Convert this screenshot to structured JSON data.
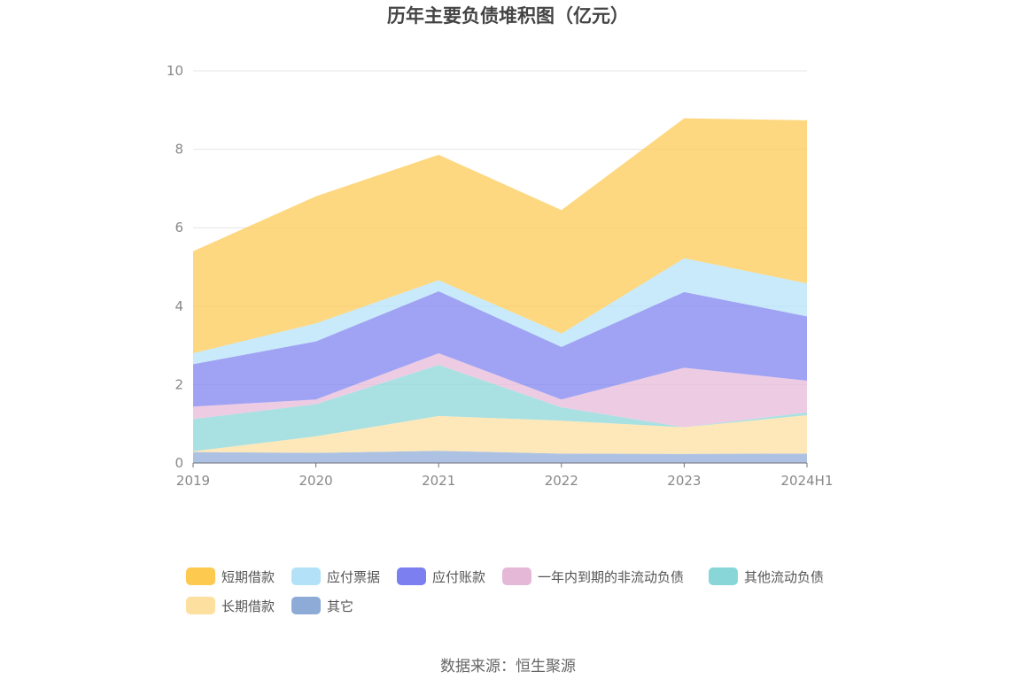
{
  "chart_data": {
    "type": "area",
    "stacked": true,
    "title": "历年主要负债堆积图（亿元）",
    "categories": [
      "2019",
      "2020",
      "2021",
      "2022",
      "2023",
      "2024H1"
    ],
    "ylim": [
      0,
      10
    ],
    "yticks": [
      0,
      2,
      4,
      6,
      8,
      10
    ],
    "grid": true,
    "legend_position": "bottom",
    "series": [
      {
        "name": "其它",
        "color": "#8eabd8",
        "values": [
          0.28,
          0.26,
          0.31,
          0.24,
          0.23,
          0.24
        ]
      },
      {
        "name": "长期借款",
        "color": "#fddf9f",
        "values": [
          0.02,
          0.42,
          0.89,
          0.84,
          0.68,
          0.98
        ]
      },
      {
        "name": "其他流动负债",
        "color": "#88d6d8",
        "values": [
          0.82,
          0.82,
          1.3,
          0.34,
          0.0,
          0.07
        ]
      },
      {
        "name": "一年内到期的非流动负债",
        "color": "#e6b8d8",
        "values": [
          0.32,
          0.12,
          0.3,
          0.2,
          1.52,
          0.81
        ]
      },
      {
        "name": "应付账款",
        "color": "#7b7ff0",
        "values": [
          1.08,
          1.48,
          1.58,
          1.34,
          1.93,
          1.64
        ]
      },
      {
        "name": "应付票据",
        "color": "#b3e2f8",
        "values": [
          0.28,
          0.46,
          0.28,
          0.34,
          0.86,
          0.84
        ]
      },
      {
        "name": "短期借款",
        "color": "#fdc94f",
        "values": [
          2.6,
          3.24,
          3.2,
          3.15,
          3.57,
          4.16
        ]
      }
    ]
  },
  "legend": [
    {
      "label": "短期借款",
      "color": "#fdc94f"
    },
    {
      "label": "应付票据",
      "color": "#b3e2f8"
    },
    {
      "label": "应付账款",
      "color": "#7b7ff0"
    },
    {
      "label": "一年内到期的非流动负债",
      "color": "#e6b8d8"
    },
    {
      "label": "其他流动负债",
      "color": "#88d6d8"
    },
    {
      "label": "长期借款",
      "color": "#fddf9f"
    },
    {
      "label": "其它",
      "color": "#8eabd8"
    }
  ],
  "source": "数据来源：恒生聚源"
}
